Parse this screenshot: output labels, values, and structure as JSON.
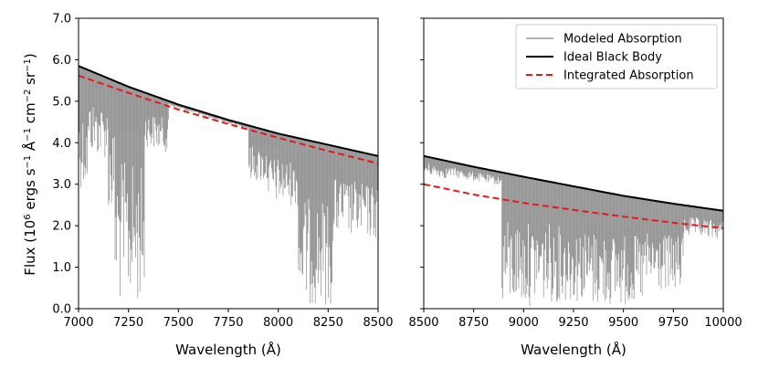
{
  "chart_data": [
    {
      "type": "line",
      "panel": "left",
      "xlabel": "Wavelength (Å)",
      "ylabel": "Flux (10^6 ergs s^-1 Å^-1 cm^-2 sr^-1)",
      "xlim": [
        7000,
        8500
      ],
      "ylim": [
        0.0,
        7.0
      ],
      "xticks": [
        "7000",
        "7250",
        "7500",
        "7750",
        "8000",
        "8250",
        "8500"
      ],
      "yticks": [
        "0.0",
        "1.0",
        "2.0",
        "3.0",
        "4.0",
        "5.0",
        "6.0",
        "7.0"
      ],
      "series": [
        {
          "name": "Ideal Black Body",
          "color": "#000000",
          "style": "solid",
          "x": [
            7000,
            7250,
            7500,
            7750,
            8000,
            8250,
            8500
          ],
          "values": [
            5.85,
            5.35,
            4.92,
            4.55,
            4.22,
            3.95,
            3.68
          ]
        },
        {
          "name": "Integrated Absorption",
          "color": "#e31a1c",
          "style": "dashed",
          "x": [
            7000,
            7250,
            7500,
            7750,
            8000,
            8250,
            8500
          ],
          "values": [
            5.62,
            5.2,
            4.8,
            4.45,
            4.12,
            3.8,
            3.5
          ]
        },
        {
          "name": "Modeled Absorption",
          "color": "#8c8c8c",
          "style": "band",
          "bands": [
            {
              "from": 7000,
              "to": 7050,
              "depth": 0.5
            },
            {
              "from": 7050,
              "to": 7150,
              "depth": 0.35
            },
            {
              "from": 7150,
              "to": 7180,
              "depth": 0.6
            },
            {
              "from": 7180,
              "to": 7330,
              "depth": 0.98
            },
            {
              "from": 7330,
              "to": 7450,
              "depth": 0.25
            },
            {
              "from": 7850,
              "to": 7950,
              "depth": 0.3
            },
            {
              "from": 7950,
              "to": 8100,
              "depth": 0.4
            },
            {
              "from": 8100,
              "to": 8280,
              "depth": 0.98
            },
            {
              "from": 8280,
              "to": 8500,
              "depth": 0.55
            }
          ]
        }
      ]
    },
    {
      "type": "line",
      "panel": "right",
      "xlabel": "Wavelength (Å)",
      "xlim": [
        8500,
        10000
      ],
      "ylim": [
        0.0,
        7.0
      ],
      "xticks": [
        "8500",
        "8750",
        "9000",
        "9250",
        "9500",
        "9750",
        "10000"
      ],
      "legend_position": "top-right",
      "series": [
        {
          "name": "Ideal Black Body",
          "color": "#000000",
          "style": "solid",
          "x": [
            8500,
            8750,
            9000,
            9250,
            9500,
            9750,
            10000
          ],
          "values": [
            3.68,
            3.42,
            3.18,
            2.95,
            2.72,
            2.53,
            2.36
          ]
        },
        {
          "name": "Integrated Absorption",
          "color": "#e31a1c",
          "style": "dashed",
          "x": [
            8500,
            8750,
            9000,
            9250,
            9500,
            9750,
            10000
          ],
          "values": [
            3.0,
            2.75,
            2.55,
            2.38,
            2.22,
            2.07,
            1.94
          ]
        },
        {
          "name": "Modeled Absorption",
          "color": "#8c8c8c",
          "style": "band",
          "bands": [
            {
              "from": 8500,
              "to": 8620,
              "depth": 0.12
            },
            {
              "from": 8620,
              "to": 8890,
              "depth": 0.1
            },
            {
              "from": 8890,
              "to": 9050,
              "depth": 0.98
            },
            {
              "from": 9050,
              "to": 9300,
              "depth": 0.95
            },
            {
              "from": 9300,
              "to": 9600,
              "depth": 0.98
            },
            {
              "from": 9600,
              "to": 9800,
              "depth": 0.85
            },
            {
              "from": 9800,
              "to": 10000,
              "depth": 0.3
            }
          ]
        }
      ]
    }
  ],
  "legend": {
    "items": [
      {
        "label": "Modeled Absorption",
        "color": "#9a9a9a",
        "style": "solid"
      },
      {
        "label": "Ideal Black Body",
        "color": "#000000",
        "style": "solid"
      },
      {
        "label": "Integrated Absorption",
        "color": "#e31a1c",
        "style": "dashed"
      }
    ]
  },
  "labels": {
    "ylabel_main": "Flux (10",
    "ylabel_exp1": "6",
    "ylabel_mid1": " ergs s",
    "ylabel_exp2": "−1",
    "ylabel_mid2": " Å",
    "ylabel_exp3": "−1",
    "ylabel_mid3": " cm",
    "ylabel_exp4": "−2",
    "ylabel_mid4": " sr",
    "ylabel_exp5": "−1",
    "ylabel_end": ")",
    "xlabel_left": "Wavelength (Å)",
    "xlabel_right": "Wavelength (Å)"
  }
}
